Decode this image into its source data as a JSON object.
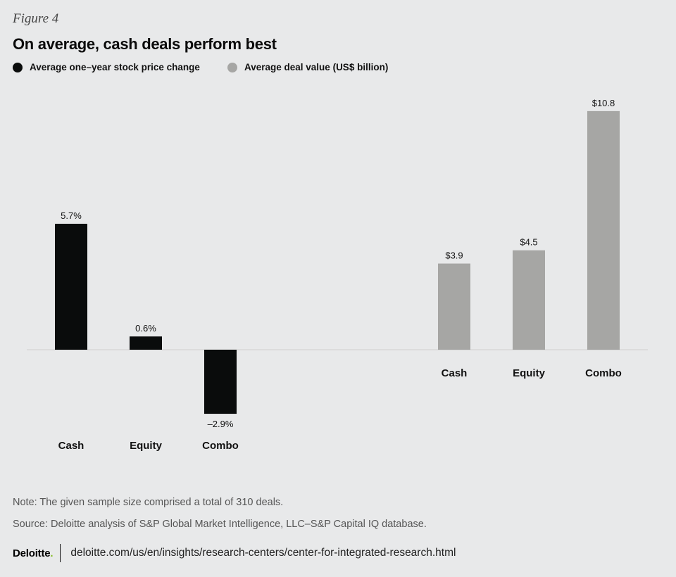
{
  "figure_label": "Figure 4",
  "title": "On average, cash deals perform best",
  "legend": [
    {
      "label": "Average one–year stock price change",
      "color": "#0a0c0c"
    },
    {
      "label": "Average deal value (US$ billion)",
      "color": "#a6a6a4"
    }
  ],
  "note": "Note: The given sample size comprised a total of 310 deals.",
  "source": "Source: Deloitte analysis of S&P Global Market Intelligence, LLC–S&P Capital IQ database.",
  "footer": {
    "logo": "Deloitte",
    "logo_dot": ".",
    "url": "deloitte.com/us/en/insights/research-centers/center-for-integrated-research.html"
  },
  "colors": {
    "background": "#e8e9ea",
    "axis": "#cfcfcf"
  },
  "chart_data": [
    {
      "type": "bar",
      "series_name": "Average one–year stock price change",
      "categories": [
        "Cash",
        "Equity",
        "Combo"
      ],
      "values": [
        5.7,
        0.6,
        -2.9
      ],
      "labels": [
        "5.7%",
        "0.6%",
        "–2.9%"
      ],
      "color": "#0a0c0c",
      "unit": "%"
    },
    {
      "type": "bar",
      "series_name": "Average deal value (US$ billion)",
      "categories": [
        "Cash",
        "Equity",
        "Combo"
      ],
      "values": [
        3.9,
        4.5,
        10.8
      ],
      "labels": [
        "$3.9",
        "$4.5",
        "$10.8"
      ],
      "color": "#a6a6a4",
      "unit": "US$ billion"
    }
  ]
}
